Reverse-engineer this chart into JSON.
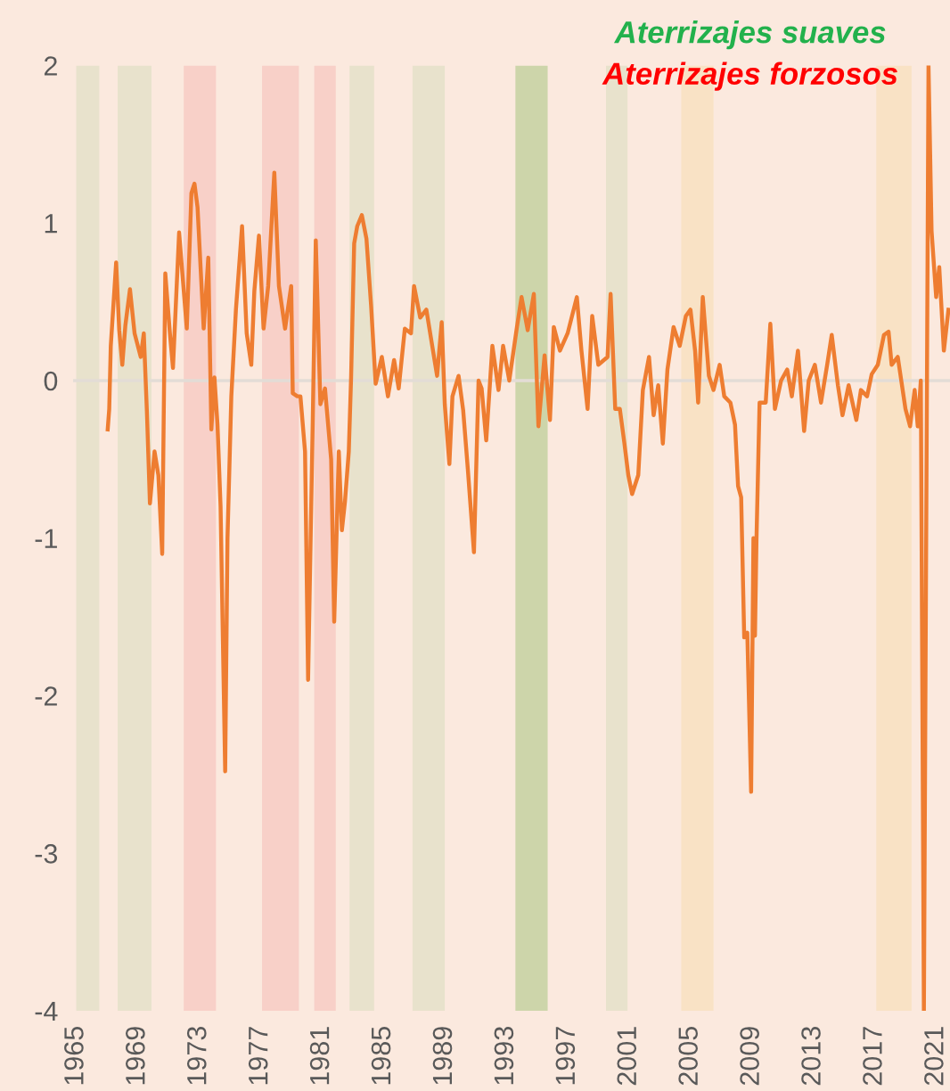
{
  "chart_data": {
    "type": "line",
    "annotations": [
      "Aterrizajes suaves",
      "Aterrizajes forzosos"
    ],
    "x": [
      1967.05,
      1967.15,
      1967.25,
      1967.6,
      1967.8,
      1968.0,
      1968.2,
      1968.5,
      1968.8,
      1969.2,
      1969.4,
      1969.6,
      1969.8,
      1970.1,
      1970.35,
      1970.6,
      1970.8,
      1971.1,
      1971.3,
      1971.7,
      1972.2,
      1972.5,
      1972.7,
      1972.9,
      1973.3,
      1973.6,
      1973.8,
      1974.0,
      1974.2,
      1974.4,
      1974.7,
      1974.85,
      1975.1,
      1975.4,
      1975.8,
      1976.1,
      1976.4,
      1976.6,
      1976.9,
      1977.2,
      1977.5,
      1977.9,
      1978.2,
      1978.6,
      1979.0,
      1979.1,
      1979.4,
      1979.6,
      1979.9,
      1980.1,
      1980.4,
      1980.6,
      1980.9,
      1981.2,
      1981.6,
      1981.8,
      1982.1,
      1982.3,
      1982.5,
      1982.75,
      1982.9,
      1983.1,
      1983.3,
      1983.6,
      1983.9,
      1984.2,
      1984.5,
      1984.9,
      1985.3,
      1985.7,
      1986.0,
      1986.4,
      1986.8,
      1987.0,
      1987.4,
      1987.8,
      1988.2,
      1988.5,
      1988.8,
      1989.0,
      1989.3,
      1989.5,
      1989.9,
      1990.2,
      1990.5,
      1990.9,
      1991.2,
      1991.4,
      1991.7,
      1992.1,
      1992.5,
      1992.8,
      1993.2,
      1993.7,
      1994.0,
      1994.4,
      1994.8,
      1995.1,
      1995.5,
      1995.85,
      1996.1,
      1996.5,
      1997.0,
      1997.6,
      1997.9,
      1998.3,
      1998.6,
      1999.0,
      1999.6,
      1999.8,
      2000.1,
      2000.4,
      2000.7,
      2000.95,
      2001.2,
      2001.6,
      2001.9,
      2002.3,
      2002.6,
      2002.9,
      2003.2,
      2003.5,
      2003.9,
      2004.3,
      2004.7,
      2005.0,
      2005.3,
      2005.5,
      2005.8,
      2006.2,
      2006.5,
      2006.9,
      2007.2,
      2007.6,
      2007.9,
      2008.1,
      2008.3,
      2008.5,
      2008.7,
      2008.85,
      2008.95,
      2009.1,
      2009.2,
      2009.3,
      2009.5,
      2009.9,
      2010.2,
      2010.5,
      2010.9,
      2011.3,
      2011.6,
      2012.0,
      2012.4,
      2012.7,
      2013.1,
      2013.5,
      2013.9,
      2014.2,
      2014.6,
      2014.9,
      2015.3,
      2015.8,
      2016.1,
      2016.5,
      2016.8,
      2017.2,
      2017.6,
      2017.9,
      2018.1,
      2018.5,
      2019.0,
      2019.3,
      2019.6,
      2019.8,
      2020.0,
      2020.2,
      2020.5,
      2020.7,
      2021.0,
      2021.2,
      2021.5,
      2021.8
    ],
    "series": [
      {
        "color": "#ee7d31",
        "values": [
          -0.31,
          -0.18,
          0.22,
          0.75,
          0.32,
          0.1,
          0.35,
          0.58,
          0.3,
          0.15,
          0.3,
          -0.19,
          -0.78,
          -0.45,
          -0.6,
          -1.1,
          0.68,
          0.3,
          0.08,
          0.94,
          0.33,
          1.19,
          1.25,
          1.1,
          0.33,
          0.78,
          -0.31,
          0.02,
          -0.28,
          -0.8,
          -2.48,
          -1.0,
          -0.1,
          0.45,
          0.98,
          0.3,
          0.1,
          0.57,
          0.92,
          0.33,
          0.6,
          1.32,
          0.6,
          0.33,
          0.6,
          -0.08,
          -0.1,
          -0.1,
          -0.45,
          -1.9,
          -0.27,
          0.89,
          -0.15,
          -0.05,
          -0.5,
          -1.53,
          -0.45,
          -0.95,
          -0.77,
          -0.45,
          0.02,
          0.87,
          0.98,
          1.05,
          0.9,
          0.48,
          -0.02,
          0.15,
          -0.1,
          0.13,
          -0.05,
          0.33,
          0.3,
          0.6,
          0.4,
          0.45,
          0.21,
          0.03,
          0.37,
          -0.15,
          -0.53,
          -0.1,
          0.03,
          -0.19,
          -0.56,
          -1.09,
          0.0,
          -0.05,
          -0.38,
          0.22,
          -0.06,
          0.22,
          0.0,
          0.34,
          0.53,
          0.32,
          0.55,
          -0.29,
          0.16,
          -0.25,
          0.34,
          0.19,
          0.3,
          0.53,
          0.19,
          -0.18,
          0.41,
          0.1,
          0.15,
          0.55,
          -0.18,
          -0.18,
          -0.4,
          -0.6,
          -0.72,
          -0.6,
          -0.06,
          0.15,
          -0.22,
          -0.03,
          -0.4,
          0.07,
          0.34,
          0.22,
          0.41,
          0.45,
          0.19,
          -0.14,
          0.53,
          0.03,
          -0.06,
          0.1,
          -0.1,
          -0.14,
          -0.28,
          -0.67,
          -0.74,
          -1.63,
          -1.6,
          -2.2,
          -2.61,
          -1.0,
          -1.62,
          -1.0,
          -0.14,
          -0.14,
          0.36,
          -0.18,
          0.0,
          0.07,
          -0.1,
          0.19,
          -0.32,
          0.0,
          0.1,
          -0.14,
          0.1,
          0.29,
          -0.03,
          -0.22,
          -0.03,
          -0.25,
          -0.06,
          -0.1,
          0.04,
          0.1,
          0.29,
          0.31,
          0.1,
          0.15,
          -0.18,
          -0.29,
          -0.06,
          -0.29,
          0.0,
          -4.0,
          2.0,
          0.95,
          0.53,
          0.72,
          0.19,
          0.45
        ]
      }
    ],
    "xlim": [
      1964.8,
      2021.9
    ],
    "xticks": [
      1965,
      1969,
      1973,
      1977,
      1981,
      1985,
      1989,
      1993,
      1997,
      2001,
      2005,
      2009,
      2013,
      2017,
      2021
    ],
    "ylim": [
      -4,
      2
    ],
    "yticks": [
      -4,
      -3,
      -2,
      -1,
      0,
      1,
      2
    ],
    "ref_lines": [
      {
        "axis": "y",
        "value": 0,
        "color": "#e3dcd6"
      }
    ],
    "bands": [
      {
        "axis": "x",
        "from": 1965.0,
        "to": 1966.5,
        "color": "#e8e2cc"
      },
      {
        "axis": "x",
        "from": 1967.7,
        "to": 1969.9,
        "color": "#e8e2cc"
      },
      {
        "axis": "x",
        "from": 1972.0,
        "to": 1974.1,
        "color": "#f8d0c8"
      },
      {
        "axis": "x",
        "from": 1977.1,
        "to": 1979.5,
        "color": "#f8d0c8"
      },
      {
        "axis": "x",
        "from": 1980.5,
        "to": 1981.9,
        "color": "#f8d0c8"
      },
      {
        "axis": "x",
        "from": 1982.8,
        "to": 1984.4,
        "color": "#e8e2cc"
      },
      {
        "axis": "x",
        "from": 1986.9,
        "to": 1989.0,
        "color": "#e8e2cc"
      },
      {
        "axis": "x",
        "from": 1993.6,
        "to": 1995.7,
        "color": "#cdd5aa"
      },
      {
        "axis": "x",
        "from": 1999.5,
        "to": 2000.9,
        "color": "#e8e2cc"
      },
      {
        "axis": "x",
        "from": 2004.4,
        "to": 2006.5,
        "color": "#f9e2c5"
      },
      {
        "axis": "x",
        "from": 2017.1,
        "to": 2019.4,
        "color": "#f9e2c5"
      }
    ],
    "grid": false,
    "legend": false,
    "marker": "none",
    "line_style": "solid"
  }
}
